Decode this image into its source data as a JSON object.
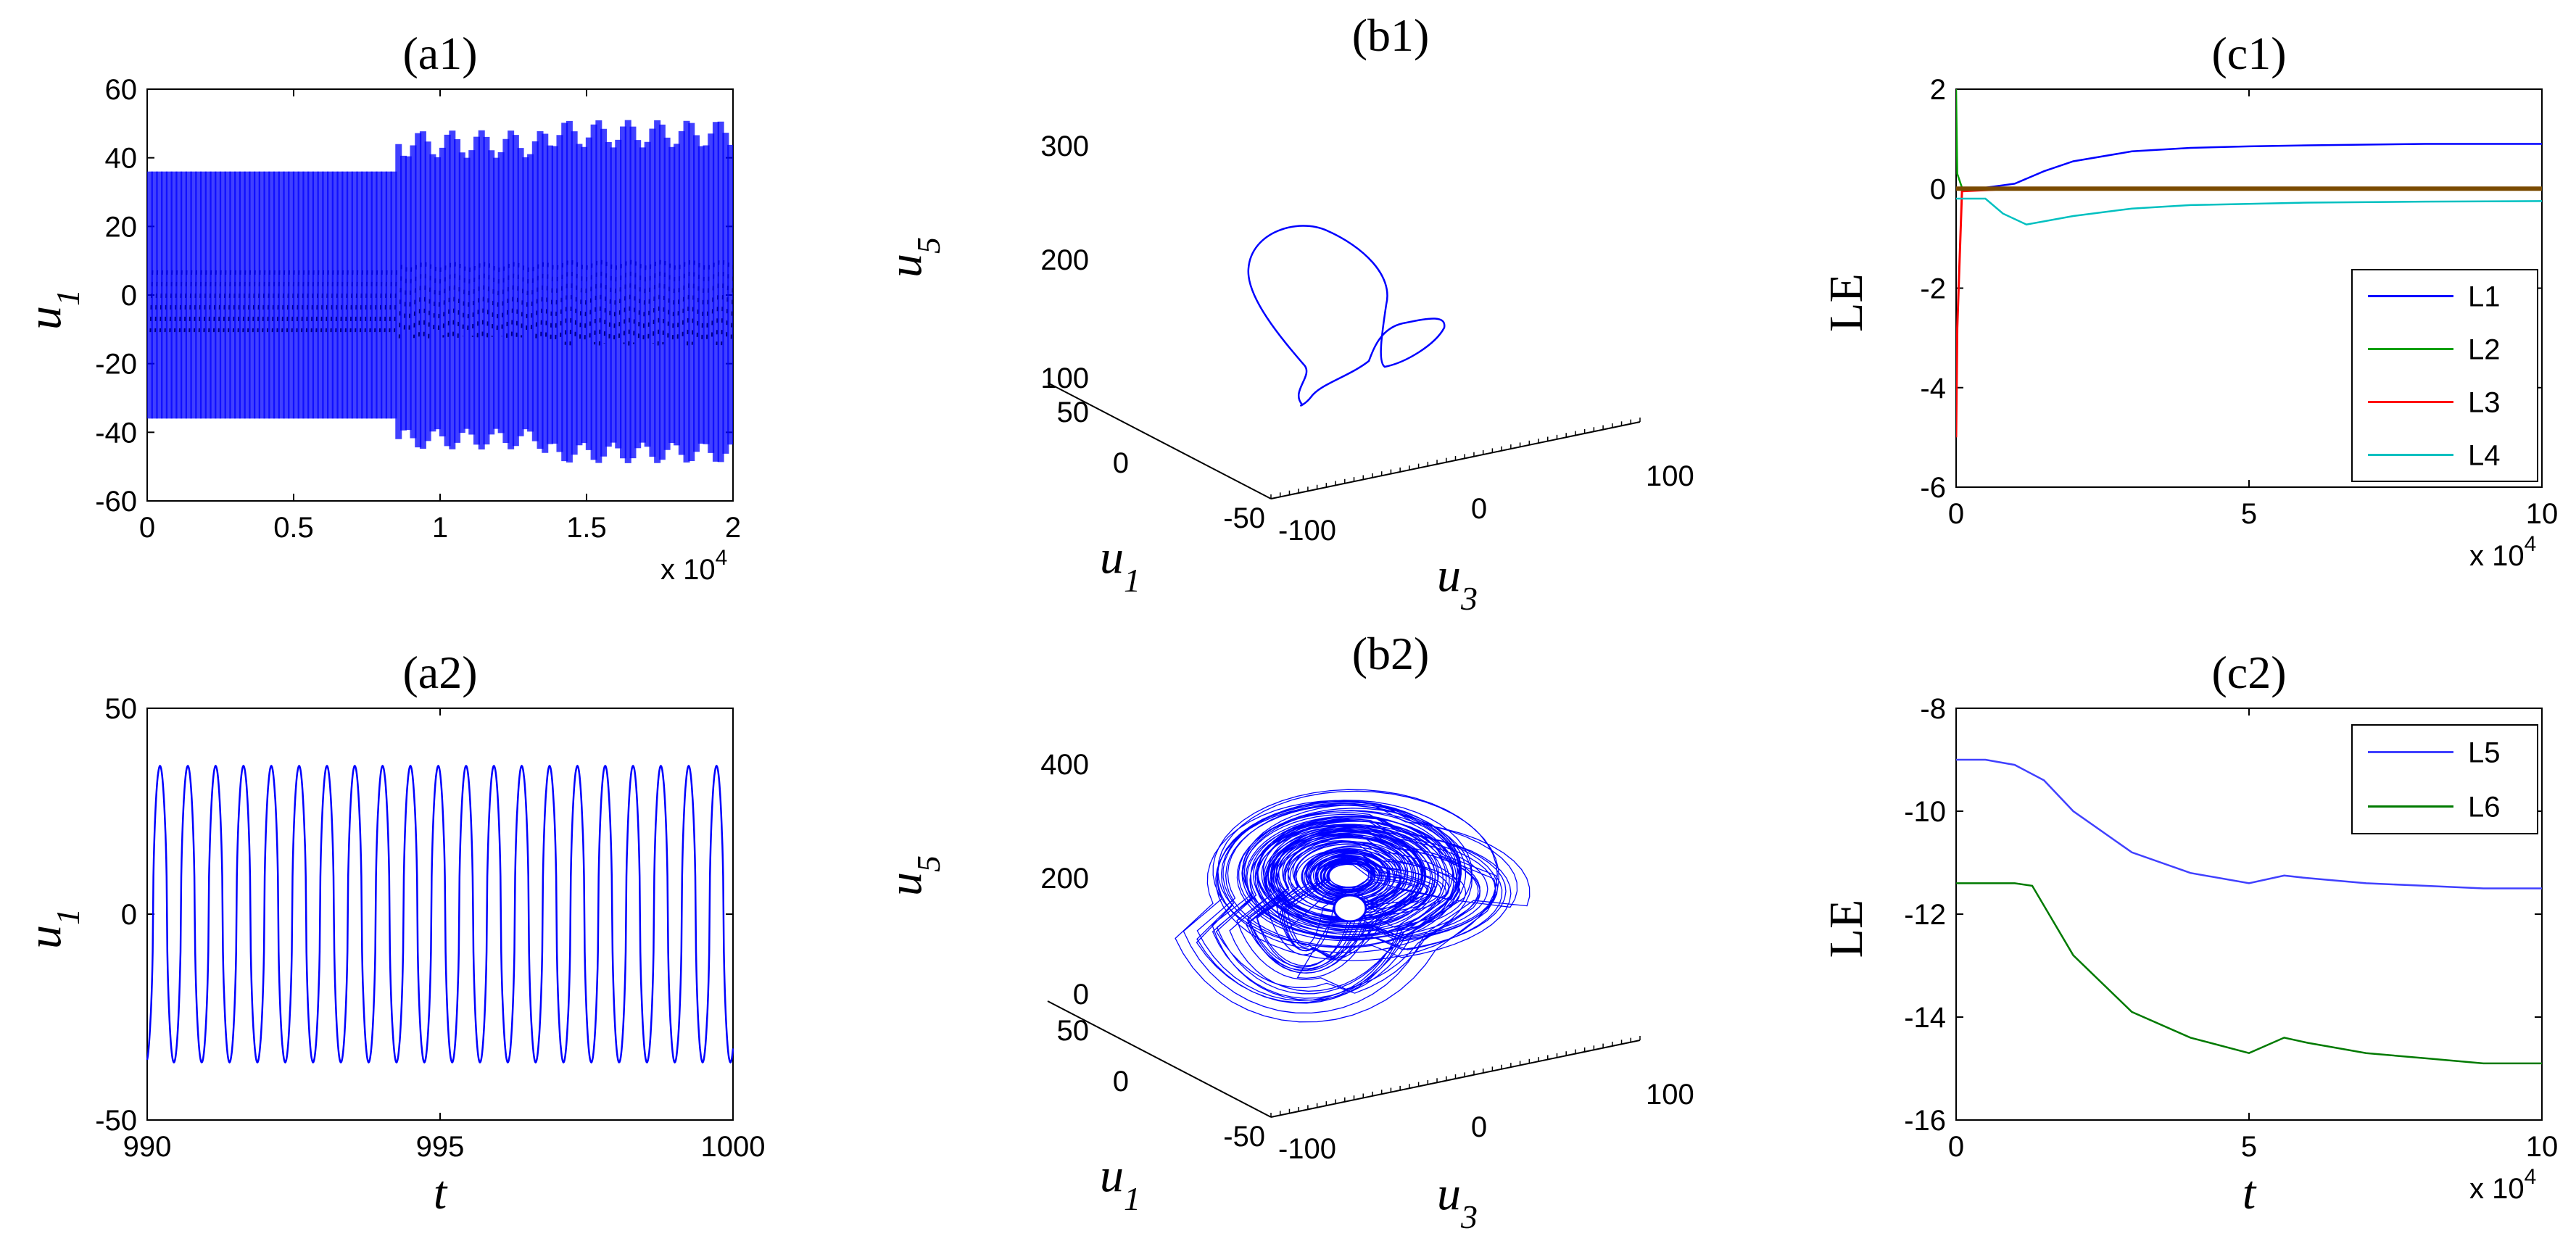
{
  "colors": {
    "blue": "#0000ff",
    "light_blue": "#8080ff",
    "green": "#00a000",
    "dark_green": "#007a00",
    "red": "#ff0000",
    "cyan": "#00c0c0",
    "axis": "#000000"
  },
  "chart_data": [
    {
      "id": "a1",
      "type": "line",
      "title": "(a1)",
      "xlabel": "",
      "ylabel": "u",
      "ylabel_sub": "1",
      "xlim": [
        0,
        2
      ],
      "ylim": [
        -60,
        60
      ],
      "xticks": [
        "0",
        "0.5",
        "1",
        "1.5",
        "2"
      ],
      "xtick_values": [
        0,
        0.5,
        1,
        1.5,
        2
      ],
      "yticks": [
        "-60",
        "-40",
        "-20",
        "0",
        "20",
        "40",
        "60"
      ],
      "ytick_values": [
        -60,
        -40,
        -20,
        0,
        20,
        40,
        60
      ],
      "x_exponent_base": "x 10",
      "x_exponent_power": "4",
      "series": [
        {
          "description": "dense oscillation u1(t)",
          "segments": [
            {
              "x_start": 0,
              "x_end": 0.85,
              "amplitude_max": 36,
              "amplitude_min": -36
            },
            {
              "x_start": 0.85,
              "x_end": 1.35,
              "amplitude_max": 48,
              "amplitude_min": -45
            },
            {
              "x_start": 1.35,
              "x_end": 2,
              "amplitude_max": 51,
              "amplitude_min": -49
            }
          ]
        }
      ]
    },
    {
      "id": "a2",
      "type": "line",
      "title": "(a2)",
      "xlabel": "t",
      "ylabel": "u",
      "ylabel_sub": "1",
      "xlim": [
        990,
        1000
      ],
      "ylim": [
        -50,
        50
      ],
      "xticks": [
        "990",
        "995",
        "1000"
      ],
      "xtick_values": [
        990,
        995,
        1000
      ],
      "yticks": [
        "-50",
        "0",
        "50"
      ],
      "ytick_values": [
        -50,
        0,
        50
      ],
      "series": [
        {
          "description": "periodic u1(t)",
          "period": 0.475,
          "amplitude": 36,
          "phase_x": 990.1
        }
      ]
    },
    {
      "id": "b1",
      "type": "line",
      "title": "(b1)",
      "projection": "3d",
      "xlabel": "u",
      "xlabel_sub": "3",
      "ylabel": "u",
      "ylabel_sub": "1",
      "zlabel": "u",
      "zlabel_sub": "5",
      "u3_ticks": [
        "-100",
        "0",
        "100"
      ],
      "u1_ticks": [
        "50",
        "0",
        "-50"
      ],
      "u5_ticks": [
        "100",
        "200",
        "300"
      ],
      "description": "closed loop trajectory"
    },
    {
      "id": "b2",
      "type": "line",
      "title": "(b2)",
      "projection": "3d",
      "xlabel": "u",
      "xlabel_sub": "3",
      "ylabel": "u",
      "ylabel_sub": "1",
      "zlabel": "u",
      "zlabel_sub": "5",
      "u3_ticks": [
        "-100",
        "0",
        "100"
      ],
      "u1_ticks": [
        "50",
        "0",
        "-50"
      ],
      "u5_ticks": [
        "0",
        "200",
        "400"
      ],
      "description": "chaotic attractor"
    },
    {
      "id": "c1",
      "type": "line",
      "title": "(c1)",
      "xlabel": "",
      "ylabel": "LE",
      "xlim": [
        0,
        10
      ],
      "ylim": [
        -6,
        2
      ],
      "xticks": [
        "0",
        "5",
        "10"
      ],
      "xtick_values": [
        0,
        5,
        10
      ],
      "yticks": [
        "-6",
        "-4",
        "-2",
        "0",
        "2"
      ],
      "ytick_values": [
        -6,
        -4,
        -2,
        0,
        2
      ],
      "x_exponent_base": "x 10",
      "x_exponent_power": "4",
      "legend_position": "lower-right",
      "series": [
        {
          "name": "L1",
          "color": "#0000ff",
          "x": [
            0,
            0.5,
            1,
            1.5,
            2,
            3,
            4,
            5,
            6,
            8,
            10
          ],
          "values": [
            0,
            0.02,
            0.1,
            0.35,
            0.55,
            0.75,
            0.82,
            0.85,
            0.87,
            0.9,
            0.9
          ]
        },
        {
          "name": "L2",
          "color": "#00a000",
          "x": [
            0,
            0.02,
            0.1,
            1,
            10
          ],
          "values": [
            2.0,
            0.3,
            0.02,
            0.0,
            0.0
          ]
        },
        {
          "name": "L3",
          "color": "#ff0000",
          "x": [
            0,
            0.02,
            0.1,
            1,
            10
          ],
          "values": [
            -5.0,
            -2.8,
            -0.05,
            0.0,
            0.0
          ]
        },
        {
          "name": "L4",
          "color": "#00c0c0",
          "x": [
            0,
            0.5,
            0.8,
            1.2,
            2,
            3,
            4,
            6,
            8,
            10
          ],
          "values": [
            -0.2,
            -0.2,
            -0.5,
            -0.72,
            -0.55,
            -0.4,
            -0.33,
            -0.28,
            -0.26,
            -0.25
          ]
        }
      ]
    },
    {
      "id": "c2",
      "type": "line",
      "title": "(c2)",
      "xlabel": "t",
      "ylabel": "LE",
      "xlim": [
        0,
        10
      ],
      "ylim": [
        -16,
        -8
      ],
      "xticks": [
        "0",
        "5",
        "10"
      ],
      "xtick_values": [
        0,
        5,
        10
      ],
      "yticks": [
        "-16",
        "-14",
        "-12",
        "-10",
        "-8"
      ],
      "ytick_values": [
        -16,
        -14,
        -12,
        -10,
        -8
      ],
      "x_exponent_base": "x 10",
      "x_exponent_power": "4",
      "legend_position": "upper-right",
      "series": [
        {
          "name": "L5",
          "color": "#4040ff",
          "x": [
            0,
            0.5,
            1,
            1.5,
            2,
            3,
            4,
            5,
            5.6,
            6,
            7,
            8,
            9,
            10
          ],
          "values": [
            -9.0,
            -9.0,
            -9.1,
            -9.4,
            -10.0,
            -10.8,
            -11.2,
            -11.4,
            -11.25,
            -11.3,
            -11.4,
            -11.45,
            -11.5,
            -11.5
          ]
        },
        {
          "name": "L6",
          "color": "#007a00",
          "x": [
            0,
            0.5,
            1,
            1.3,
            2,
            3,
            4,
            5,
            5.6,
            6,
            7,
            8,
            9,
            10
          ],
          "values": [
            -11.4,
            -11.4,
            -11.4,
            -11.45,
            -12.8,
            -13.9,
            -14.4,
            -14.7,
            -14.4,
            -14.5,
            -14.7,
            -14.8,
            -14.9,
            -14.9
          ]
        }
      ]
    }
  ]
}
